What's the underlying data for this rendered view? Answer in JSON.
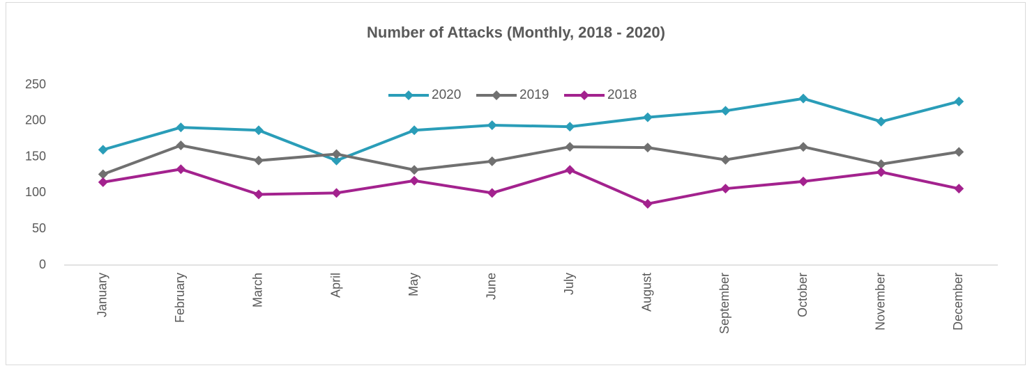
{
  "chart_data": {
    "type": "line",
    "title": "Number of Attacks (Monthly, 2018 - 2020)",
    "categories": [
      "January",
      "February",
      "March",
      "April",
      "May",
      "June",
      "July",
      "August",
      "September",
      "October",
      "November",
      "December"
    ],
    "series": [
      {
        "name": "2020",
        "color": "#2a9db8",
        "values": [
          160,
          191,
          187,
          145,
          187,
          194,
          192,
          205,
          214,
          231,
          199,
          227
        ]
      },
      {
        "name": "2019",
        "color": "#707070",
        "values": [
          126,
          166,
          145,
          154,
          132,
          144,
          164,
          163,
          146,
          164,
          140,
          157
        ]
      },
      {
        "name": "2018",
        "color": "#a3228e",
        "values": [
          115,
          133,
          98,
          100,
          117,
          100,
          132,
          85,
          106,
          116,
          129,
          106
        ]
      }
    ],
    "ylim": [
      0,
      250
    ],
    "yticks": [
      0,
      50,
      100,
      150,
      200,
      250
    ],
    "grid": false,
    "legend": "top"
  }
}
